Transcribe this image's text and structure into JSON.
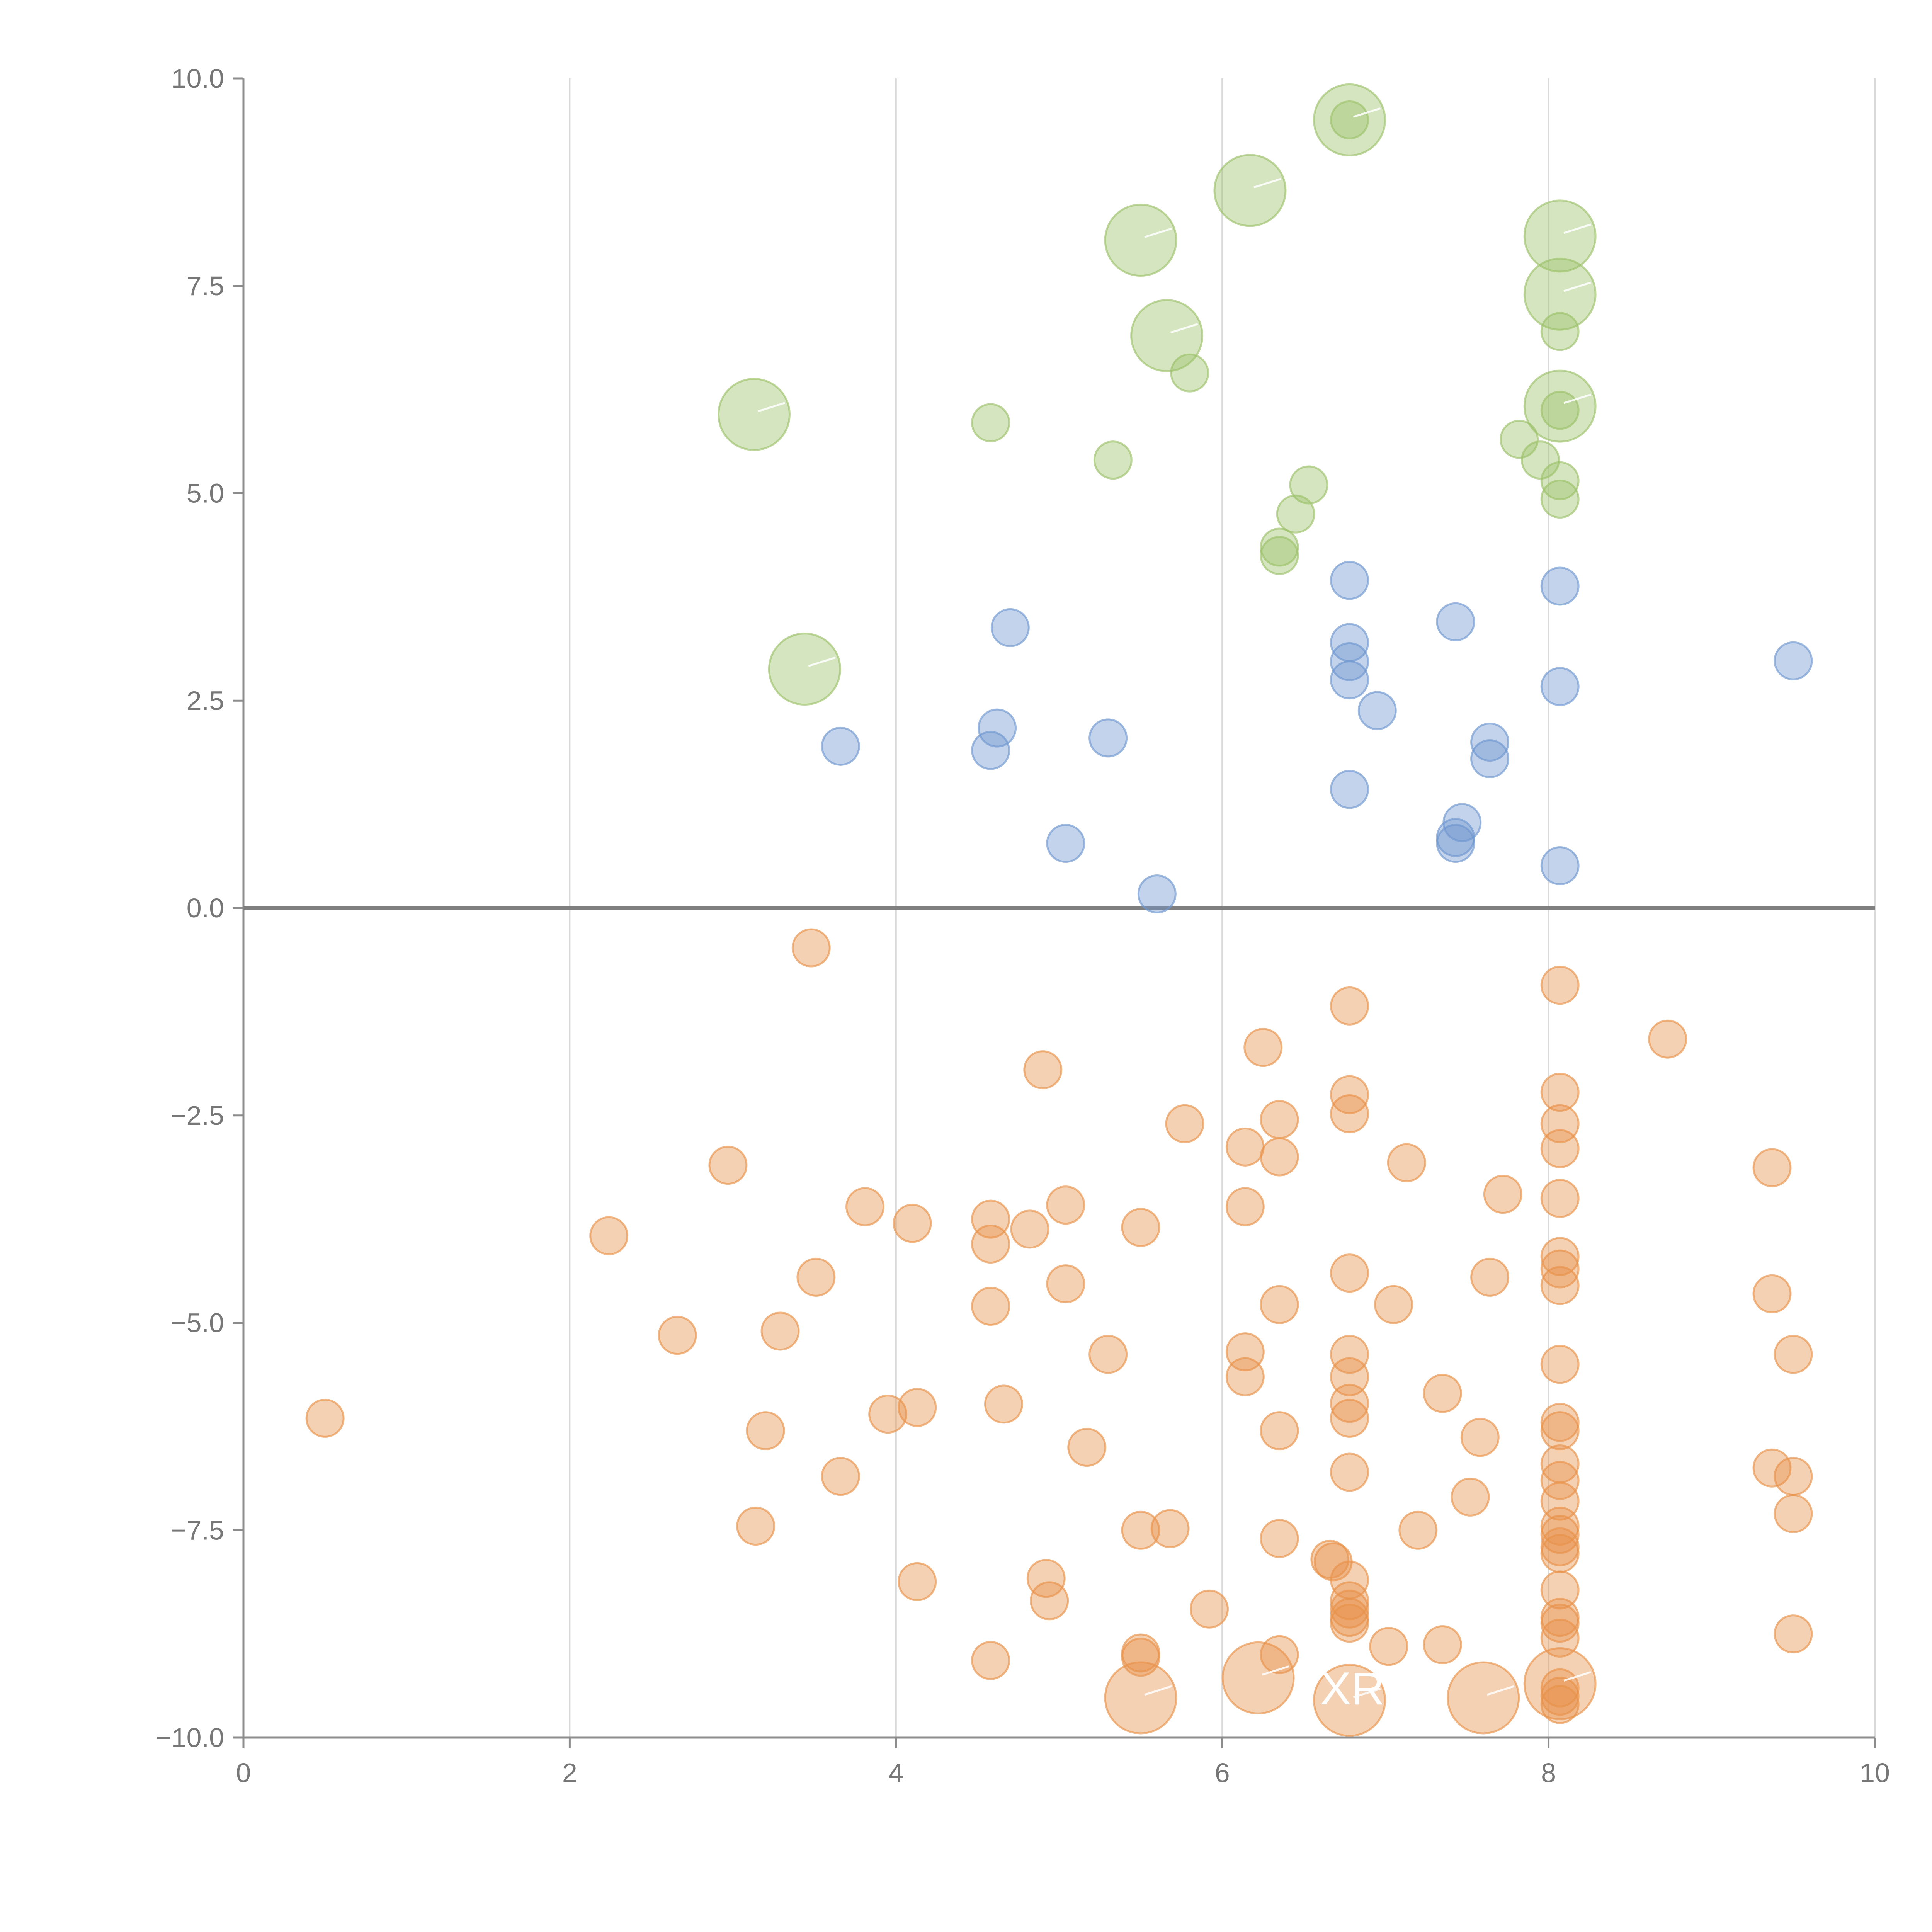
{
  "chart_data": {
    "type": "scatter",
    "title": "",
    "xlabel": "",
    "ylabel": "",
    "xlim": [
      0,
      10
    ],
    "ylim": [
      -10,
      10
    ],
    "grid": "vertical",
    "zero_line": 0,
    "x_ticks": [
      "0",
      "2",
      "4",
      "6",
      "8",
      "10"
    ],
    "y_ticks": [
      "10.0",
      "7.5",
      "5.0",
      "2.5",
      "0.0",
      "−2.5",
      "−5.0",
      "−7.5",
      "−10.0"
    ],
    "colors": {
      "green": "#9cc26a",
      "blue": "#6f96cf",
      "orange": "#e8924a",
      "grid": "#d9d9d9",
      "axis": "#8c8c8c",
      "zero": "#808080"
    },
    "annotations": [
      {
        "text": "XRP",
        "x": 6.6,
        "y": -9.6
      }
    ],
    "series": [
      {
        "name": "green",
        "points": [
          [
            6.78,
            9.5,
            3
          ],
          [
            6.78,
            9.5,
            1
          ],
          [
            6.17,
            8.65,
            3
          ],
          [
            5.5,
            8.05,
            3
          ],
          [
            8.07,
            8.1,
            3
          ],
          [
            8.07,
            7.4,
            3
          ],
          [
            5.66,
            6.9,
            3
          ],
          [
            5.8,
            6.45,
            1
          ],
          [
            8.07,
            6.95,
            1
          ],
          [
            3.13,
            5.95,
            3
          ],
          [
            8.07,
            6.05,
            3
          ],
          [
            8.07,
            6.0,
            1
          ],
          [
            4.58,
            5.85,
            1
          ],
          [
            5.33,
            5.4,
            1
          ],
          [
            7.82,
            5.65,
            1
          ],
          [
            7.95,
            5.4,
            1
          ],
          [
            8.07,
            5.15,
            1
          ],
          [
            8.07,
            4.93,
            1
          ],
          [
            6.53,
            5.1,
            1
          ],
          [
            6.45,
            4.75,
            1
          ],
          [
            6.35,
            4.35,
            1
          ],
          [
            6.35,
            4.25,
            1
          ],
          [
            3.44,
            2.88,
            3
          ]
        ]
      },
      {
        "name": "blue",
        "points": [
          [
            6.78,
            3.95,
            1
          ],
          [
            8.07,
            3.88,
            1
          ],
          [
            4.7,
            3.38,
            1
          ],
          [
            7.43,
            3.45,
            1
          ],
          [
            6.78,
            3.2,
            1
          ],
          [
            6.78,
            2.97,
            1
          ],
          [
            9.5,
            2.98,
            1
          ],
          [
            6.78,
            2.75,
            1
          ],
          [
            8.07,
            2.67,
            1
          ],
          [
            6.95,
            2.38,
            1
          ],
          [
            4.62,
            2.17,
            1
          ],
          [
            3.66,
            1.95,
            1
          ],
          [
            4.58,
            1.9,
            1
          ],
          [
            5.3,
            2.05,
            1
          ],
          [
            7.64,
            2.0,
            1
          ],
          [
            7.64,
            1.8,
            1
          ],
          [
            6.78,
            1.43,
            1
          ],
          [
            7.47,
            1.03,
            1
          ],
          [
            7.43,
            0.85,
            1
          ],
          [
            7.43,
            0.78,
            1
          ],
          [
            5.04,
            0.78,
            1
          ],
          [
            8.07,
            0.51,
            1
          ],
          [
            5.6,
            0.17,
            1
          ]
        ]
      },
      {
        "name": "orange",
        "points": [
          [
            3.48,
            -0.48,
            1
          ],
          [
            8.07,
            -0.93,
            1
          ],
          [
            6.78,
            -1.18,
            1
          ],
          [
            6.25,
            -1.68,
            1
          ],
          [
            8.73,
            -1.58,
            1
          ],
          [
            4.9,
            -1.95,
            1
          ],
          [
            6.78,
            -2.25,
            1
          ],
          [
            8.07,
            -2.22,
            1
          ],
          [
            6.78,
            -2.48,
            1
          ],
          [
            6.35,
            -2.55,
            1
          ],
          [
            8.07,
            -2.6,
            1
          ],
          [
            5.77,
            -2.6,
            1
          ],
          [
            6.14,
            -2.88,
            1
          ],
          [
            6.35,
            -3.0,
            1
          ],
          [
            8.07,
            -2.9,
            1
          ],
          [
            2.97,
            -3.1,
            1
          ],
          [
            7.13,
            -3.07,
            1
          ],
          [
            9.37,
            -3.13,
            1
          ],
          [
            7.72,
            -3.45,
            1
          ],
          [
            8.07,
            -3.5,
            1
          ],
          [
            3.81,
            -3.6,
            1
          ],
          [
            5.04,
            -3.58,
            1
          ],
          [
            6.14,
            -3.6,
            1
          ],
          [
            4.58,
            -3.75,
            1
          ],
          [
            4.1,
            -3.8,
            1
          ],
          [
            4.82,
            -3.87,
            1
          ],
          [
            5.5,
            -3.85,
            1
          ],
          [
            2.24,
            -3.95,
            1
          ],
          [
            4.58,
            -4.05,
            1
          ],
          [
            8.07,
            -4.2,
            1
          ],
          [
            8.07,
            -4.35,
            1
          ],
          [
            6.78,
            -4.4,
            1
          ],
          [
            3.51,
            -4.45,
            1
          ],
          [
            7.64,
            -4.45,
            1
          ],
          [
            8.07,
            -4.55,
            1
          ],
          [
            5.04,
            -4.53,
            1
          ],
          [
            9.37,
            -4.65,
            1
          ],
          [
            4.58,
            -4.8,
            1
          ],
          [
            6.35,
            -4.78,
            1
          ],
          [
            7.05,
            -4.78,
            1
          ],
          [
            2.66,
            -5.15,
            1
          ],
          [
            3.29,
            -5.1,
            1
          ],
          [
            5.3,
            -5.38,
            1
          ],
          [
            6.14,
            -5.35,
            1
          ],
          [
            6.78,
            -5.38,
            1
          ],
          [
            9.5,
            -5.38,
            1
          ],
          [
            8.07,
            -5.5,
            1
          ],
          [
            6.14,
            -5.65,
            1
          ],
          [
            6.78,
            -5.65,
            1
          ],
          [
            7.35,
            -5.85,
            1
          ],
          [
            4.66,
            -5.98,
            1
          ],
          [
            6.78,
            -5.97,
            1
          ],
          [
            4.13,
            -6.02,
            1
          ],
          [
            3.95,
            -6.1,
            1
          ],
          [
            6.78,
            -6.15,
            1
          ],
          [
            0.5,
            -6.15,
            1
          ],
          [
            8.07,
            -6.2,
            1
          ],
          [
            8.07,
            -6.3,
            1
          ],
          [
            3.2,
            -6.3,
            1
          ],
          [
            6.35,
            -6.3,
            1
          ],
          [
            7.58,
            -6.38,
            1
          ],
          [
            5.17,
            -6.5,
            1
          ],
          [
            6.78,
            -6.8,
            1
          ],
          [
            8.07,
            -6.7,
            1
          ],
          [
            9.37,
            -6.75,
            1
          ],
          [
            3.66,
            -6.85,
            1
          ],
          [
            8.07,
            -6.9,
            1
          ],
          [
            9.5,
            -6.85,
            1
          ],
          [
            7.52,
            -7.1,
            1
          ],
          [
            8.07,
            -7.15,
            1
          ],
          [
            9.5,
            -7.3,
            1
          ],
          [
            3.14,
            -7.45,
            1
          ],
          [
            5.5,
            -7.5,
            1
          ],
          [
            5.68,
            -7.48,
            1
          ],
          [
            7.2,
            -7.5,
            1
          ],
          [
            8.07,
            -7.45,
            1
          ],
          [
            8.07,
            -7.55,
            1
          ],
          [
            6.35,
            -7.6,
            1
          ],
          [
            8.07,
            -7.7,
            1
          ],
          [
            8.07,
            -7.78,
            1
          ],
          [
            6.66,
            -7.85,
            1
          ],
          [
            6.68,
            -7.88,
            1
          ],
          [
            6.78,
            -8.1,
            1
          ],
          [
            4.92,
            -8.08,
            1
          ],
          [
            4.13,
            -8.12,
            1
          ],
          [
            8.07,
            -8.22,
            1
          ],
          [
            4.94,
            -8.35,
            1
          ],
          [
            6.78,
            -8.35,
            1
          ],
          [
            5.92,
            -8.45,
            1
          ],
          [
            6.78,
            -8.45,
            1
          ],
          [
            6.78,
            -8.55,
            1
          ],
          [
            8.07,
            -8.55,
            1
          ],
          [
            6.78,
            -8.62,
            1
          ],
          [
            8.07,
            -8.62,
            1
          ],
          [
            9.5,
            -8.75,
            1
          ],
          [
            8.07,
            -8.8,
            1
          ],
          [
            7.35,
            -8.88,
            1
          ],
          [
            7.02,
            -8.9,
            1
          ],
          [
            5.5,
            -8.98,
            1
          ],
          [
            5.5,
            -9.03,
            1
          ],
          [
            6.35,
            -9.0,
            1
          ],
          [
            4.58,
            -9.07,
            1
          ],
          [
            6.22,
            -9.28,
            3
          ],
          [
            8.07,
            -9.35,
            3
          ],
          [
            8.07,
            -9.4,
            1
          ],
          [
            8.07,
            -9.5,
            1
          ],
          [
            5.5,
            -9.52,
            3
          ],
          [
            6.78,
            -9.55,
            3
          ],
          [
            7.6,
            -9.52,
            3
          ],
          [
            8.07,
            -9.6,
            1
          ]
        ]
      }
    ]
  }
}
